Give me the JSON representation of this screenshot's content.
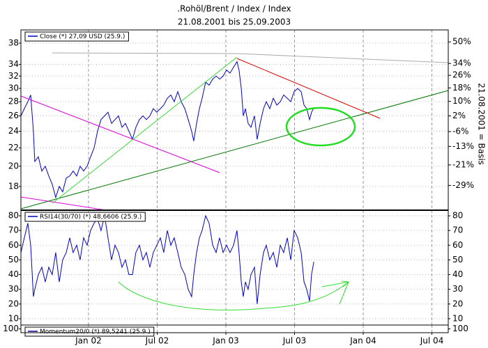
{
  "chart_data": [
    {
      "type": "line",
      "title": ".Rohöl/Brent / Index / Index",
      "subtitle": "21.08.2001 bis 25.09.2003",
      "y2_label": "21.08.2001 = Basis",
      "log_scale": true,
      "grid": true,
      "xlim": [
        2001.508,
        2004.619
      ],
      "ylim": [
        15.9,
        40.7
      ],
      "yticks": [
        18,
        20,
        22,
        24,
        26,
        28,
        30,
        32,
        34,
        38
      ],
      "y2lim": [
        -37.6,
        59.6
      ],
      "y2ticks": [
        {
          "value": 50,
          "label": "50%"
        },
        {
          "value": 34,
          "label": "34%"
        },
        {
          "value": 26,
          "label": "26%"
        },
        {
          "value": 18,
          "label": "18%"
        },
        {
          "value": 10,
          "label": "10%"
        },
        {
          "value": 2,
          "label": "2%"
        },
        {
          "value": -6,
          "label": "-6%"
        },
        {
          "value": -13,
          "label": "-13%"
        },
        {
          "value": -21,
          "label": "-21%"
        },
        {
          "value": -29,
          "label": "-29%"
        }
      ],
      "x": [
        2001.508,
        2001.533,
        2001.558,
        2001.579,
        2001.599,
        2001.609,
        2001.635,
        2001.66,
        2001.685,
        2001.711,
        2001.736,
        2001.761,
        2001.787,
        2001.812,
        2001.838,
        2001.863,
        2001.888,
        2001.914,
        2001.939,
        2001.964,
        2001.99,
        2002.015,
        2002.041,
        2002.066,
        2002.091,
        2002.117,
        2002.142,
        2002.168,
        2002.193,
        2002.218,
        2002.244,
        2002.269,
        2002.294,
        2002.32,
        2002.345,
        2002.371,
        2002.396,
        2002.421,
        2002.447,
        2002.472,
        2002.497,
        2002.523,
        2002.548,
        2002.574,
        2002.599,
        2002.624,
        2002.65,
        2002.675,
        2002.701,
        2002.726,
        2002.751,
        2002.766,
        2002.787,
        2002.807,
        2002.827,
        2002.853,
        2002.878,
        2002.904,
        2002.929,
        2002.954,
        2002.98,
        2003.005,
        2003.03,
        2003.056,
        2003.081,
        2003.096,
        2003.112,
        2003.127,
        2003.142,
        2003.162,
        2003.183,
        2003.208,
        2003.228,
        2003.249,
        2003.274,
        2003.294,
        2003.32,
        2003.345,
        2003.371,
        2003.396,
        2003.421,
        2003.447,
        2003.472,
        2003.497,
        2003.523,
        2003.548,
        2003.569,
        2003.589,
        2003.609,
        2003.624,
        2003.64
      ],
      "series": [
        {
          "name": "Close (*) 27,09 USD (25.9.)",
          "color": "#0000cc",
          "values": [
            26,
            27,
            28,
            29,
            24,
            20.5,
            21,
            19.5,
            20,
            19,
            18.2,
            17,
            18,
            17.5,
            18.8,
            19,
            19.5,
            19,
            20,
            19.5,
            20,
            21,
            22,
            24,
            25.5,
            26,
            26.5,
            25,
            25.5,
            26,
            24.5,
            25,
            24,
            23,
            24.5,
            25.5,
            26,
            25.5,
            26,
            27,
            26.5,
            27,
            27.5,
            28.5,
            29,
            28,
            29.5,
            28,
            27,
            25.5,
            24,
            22.8,
            25,
            27,
            28.5,
            31,
            30.5,
            31.5,
            32,
            31.5,
            32,
            33,
            32.5,
            33.5,
            34.5,
            33,
            30,
            26,
            27,
            25,
            24.5,
            26,
            23,
            25,
            27,
            28,
            27,
            28.5,
            27.5,
            28,
            29,
            28.5,
            28,
            29.5,
            30,
            29.5,
            27.5,
            27,
            25.5,
            26.5,
            27.09
          ]
        }
      ]
    },
    {
      "type": "line",
      "grid": true,
      "xlim": [
        2001.508,
        2004.619
      ],
      "ylim": [
        5.7,
        83.8
      ],
      "yticks": [
        10,
        20,
        30,
        40,
        50,
        60,
        70,
        80
      ],
      "x": [
        2001.508,
        2001.533,
        2001.558,
        2001.579,
        2001.599,
        2001.609,
        2001.635,
        2001.66,
        2001.685,
        2001.711,
        2001.736,
        2001.761,
        2001.787,
        2001.812,
        2001.838,
        2001.863,
        2001.888,
        2001.914,
        2001.939,
        2001.964,
        2001.99,
        2002.015,
        2002.041,
        2002.066,
        2002.091,
        2002.117,
        2002.142,
        2002.168,
        2002.193,
        2002.218,
        2002.244,
        2002.269,
        2002.294,
        2002.32,
        2002.345,
        2002.371,
        2002.396,
        2002.421,
        2002.447,
        2002.472,
        2002.497,
        2002.523,
        2002.548,
        2002.574,
        2002.599,
        2002.624,
        2002.65,
        2002.675,
        2002.701,
        2002.726,
        2002.751,
        2002.766,
        2002.787,
        2002.807,
        2002.827,
        2002.853,
        2002.878,
        2002.904,
        2002.929,
        2002.954,
        2002.98,
        2003.005,
        2003.03,
        2003.056,
        2003.081,
        2003.096,
        2003.112,
        2003.127,
        2003.142,
        2003.162,
        2003.183,
        2003.208,
        2003.228,
        2003.249,
        2003.274,
        2003.294,
        2003.32,
        2003.345,
        2003.371,
        2003.396,
        2003.421,
        2003.447,
        2003.472,
        2003.497,
        2003.523,
        2003.548,
        2003.569,
        2003.589,
        2003.609,
        2003.624,
        2003.64
      ],
      "series": [
        {
          "name": "RSI14(30/70) (*) 48,6606 (25.9.)",
          "color": "#0000cc",
          "values": [
            55,
            65,
            75,
            60,
            25,
            30,
            40,
            45,
            35,
            45,
            40,
            55,
            35,
            50,
            55,
            65,
            55,
            60,
            50,
            65,
            60,
            70,
            75,
            78,
            70,
            80,
            65,
            50,
            60,
            55,
            45,
            50,
            40,
            40,
            55,
            60,
            50,
            55,
            45,
            55,
            60,
            65,
            55,
            70,
            60,
            65,
            55,
            45,
            40,
            30,
            25,
            40,
            55,
            65,
            70,
            80,
            75,
            60,
            55,
            65,
            55,
            60,
            55,
            60,
            70,
            55,
            35,
            25,
            35,
            30,
            40,
            45,
            20,
            40,
            55,
            60,
            50,
            55,
            45,
            60,
            55,
            65,
            50,
            70,
            65,
            55,
            35,
            30,
            22,
            40,
            48.6606
          ]
        }
      ]
    },
    {
      "type": "line",
      "xlim": [
        2001.508,
        2004.619
      ],
      "ylim": [
        97,
        103
      ],
      "yticks": [
        100
      ],
      "xticks": [
        {
          "value": 2002.0,
          "label": "Jan 02"
        },
        {
          "value": 2002.5,
          "label": "Jul 02"
        },
        {
          "value": 2003.0,
          "label": "Jan 03"
        },
        {
          "value": 2003.5,
          "label": "Jul 03"
        },
        {
          "value": 2004.0,
          "label": "Jan 04"
        },
        {
          "value": 2004.5,
          "label": "Jul 04"
        }
      ],
      "series": [
        {
          "name": "Momentum20/0 (*) 89,5241 (25.9.)",
          "color": "#00008b"
        }
      ]
    }
  ]
}
